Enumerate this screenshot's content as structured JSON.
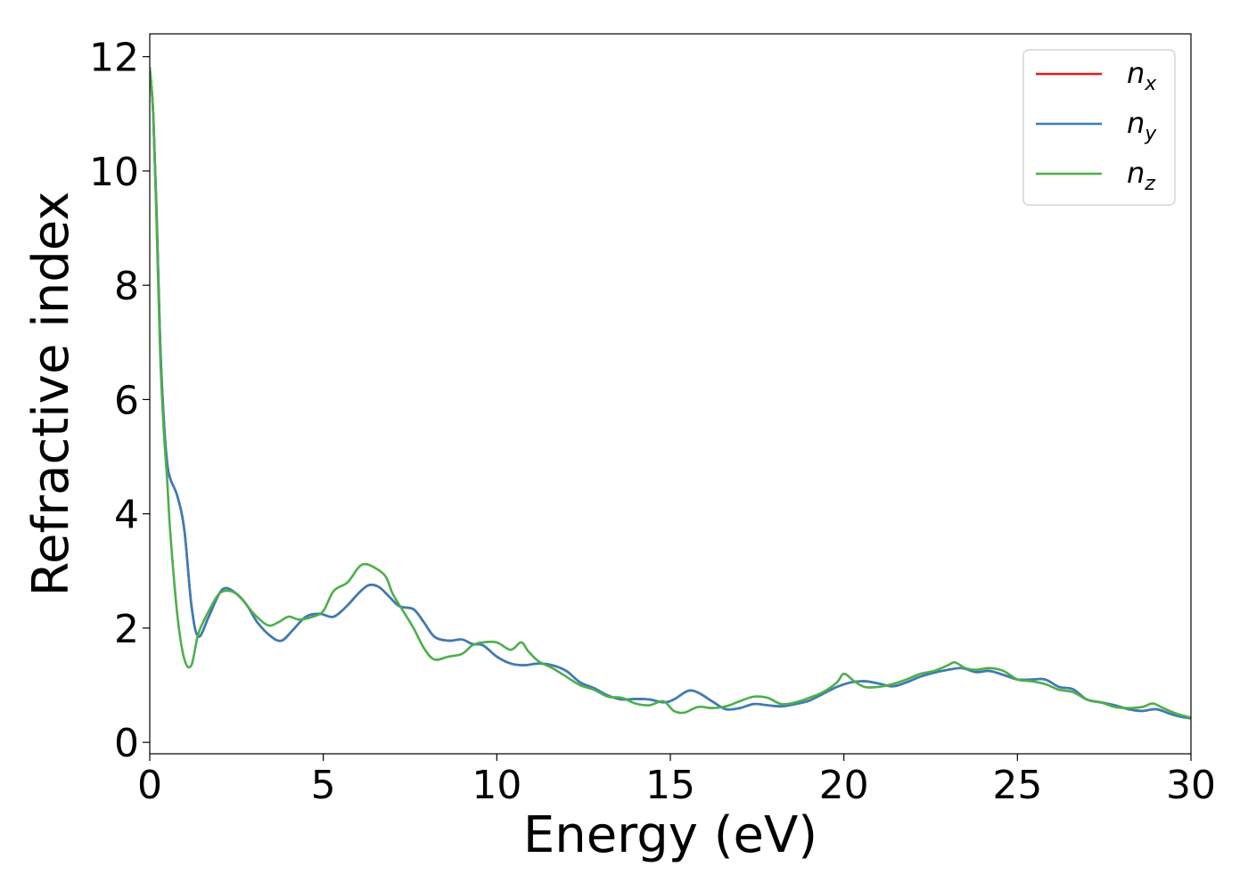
{
  "chart_data": {
    "type": "line",
    "xlabel": "Energy (eV)",
    "ylabel": "Refractive index",
    "xlim": [
      0,
      30
    ],
    "ylim": [
      -0.2,
      12.4
    ],
    "xticks": [
      0,
      5,
      10,
      15,
      20,
      25,
      30
    ],
    "yticks": [
      0,
      2,
      4,
      6,
      8,
      10,
      12
    ],
    "grid": false,
    "legend_position": "top-right",
    "series": [
      {
        "name": "n_x",
        "legend_main": "n",
        "legend_sub": "x",
        "color": "#e41a1c",
        "x": [
          0,
          0.1,
          0.2,
          0.3,
          0.4,
          0.5,
          0.6,
          0.8,
          1.0,
          1.2,
          1.4,
          1.7,
          2.0,
          2.2,
          2.5,
          2.8,
          3.1,
          3.5,
          3.8,
          4.1,
          4.5,
          4.9,
          5.3,
          5.7,
          6.0,
          6.3,
          6.6,
          6.9,
          7.2,
          7.6,
          7.9,
          8.2,
          8.6,
          9.0,
          9.3,
          9.6,
          10.0,
          10.4,
          10.8,
          11.2,
          11.6,
          12.0,
          12.4,
          12.8,
          13.2,
          13.6,
          14.0,
          14.4,
          14.8,
          15.1,
          15.5,
          15.8,
          16.2,
          16.6,
          17.0,
          17.4,
          17.8,
          18.2,
          18.6,
          19.0,
          19.4,
          19.8,
          20.2,
          20.6,
          21.0,
          21.4,
          21.8,
          22.2,
          22.6,
          23.0,
          23.4,
          23.8,
          24.2,
          24.6,
          25.0,
          25.4,
          25.8,
          26.2,
          26.6,
          27.0,
          27.4,
          27.8,
          28.2,
          28.6,
          29.0,
          29.4,
          29.7,
          30.0
        ],
        "y": [
          11.8,
          11.0,
          9.2,
          7.0,
          5.7,
          4.9,
          4.6,
          4.3,
          3.7,
          2.4,
          1.85,
          2.2,
          2.6,
          2.7,
          2.6,
          2.4,
          2.1,
          1.85,
          1.78,
          1.95,
          2.2,
          2.25,
          2.2,
          2.4,
          2.6,
          2.75,
          2.72,
          2.55,
          2.38,
          2.33,
          2.1,
          1.85,
          1.78,
          1.8,
          1.72,
          1.7,
          1.5,
          1.38,
          1.35,
          1.38,
          1.35,
          1.25,
          1.05,
          0.95,
          0.82,
          0.75,
          0.76,
          0.75,
          0.7,
          0.75,
          0.9,
          0.87,
          0.72,
          0.58,
          0.6,
          0.67,
          0.65,
          0.63,
          0.67,
          0.73,
          0.85,
          0.97,
          1.05,
          1.07,
          1.03,
          0.98,
          1.05,
          1.15,
          1.22,
          1.27,
          1.3,
          1.23,
          1.25,
          1.18,
          1.1,
          1.1,
          1.1,
          0.97,
          0.93,
          0.75,
          0.7,
          0.65,
          0.58,
          0.55,
          0.58,
          0.5,
          0.45,
          0.42
        ]
      },
      {
        "name": "n_y",
        "legend_main": "n",
        "legend_sub": "y",
        "color": "#377eb8",
        "x": [
          0,
          0.1,
          0.2,
          0.3,
          0.4,
          0.5,
          0.6,
          0.8,
          1.0,
          1.2,
          1.4,
          1.7,
          2.0,
          2.2,
          2.5,
          2.8,
          3.1,
          3.5,
          3.8,
          4.1,
          4.5,
          4.9,
          5.3,
          5.7,
          6.0,
          6.3,
          6.6,
          6.9,
          7.2,
          7.6,
          7.9,
          8.2,
          8.6,
          9.0,
          9.3,
          9.6,
          10.0,
          10.4,
          10.8,
          11.2,
          11.6,
          12.0,
          12.4,
          12.8,
          13.2,
          13.6,
          14.0,
          14.4,
          14.8,
          15.1,
          15.5,
          15.8,
          16.2,
          16.6,
          17.0,
          17.4,
          17.8,
          18.2,
          18.6,
          19.0,
          19.4,
          19.8,
          20.2,
          20.6,
          21.0,
          21.4,
          21.8,
          22.2,
          22.6,
          23.0,
          23.4,
          23.8,
          24.2,
          24.6,
          25.0,
          25.4,
          25.8,
          26.2,
          26.6,
          27.0,
          27.4,
          27.8,
          28.2,
          28.6,
          29.0,
          29.4,
          29.7,
          30.0
        ],
        "y": [
          11.8,
          11.0,
          9.2,
          7.0,
          5.7,
          4.9,
          4.6,
          4.3,
          3.7,
          2.4,
          1.85,
          2.2,
          2.6,
          2.7,
          2.6,
          2.4,
          2.1,
          1.85,
          1.78,
          1.95,
          2.2,
          2.25,
          2.2,
          2.4,
          2.6,
          2.75,
          2.72,
          2.55,
          2.38,
          2.33,
          2.1,
          1.85,
          1.78,
          1.8,
          1.72,
          1.7,
          1.5,
          1.38,
          1.35,
          1.38,
          1.35,
          1.25,
          1.05,
          0.95,
          0.82,
          0.75,
          0.76,
          0.75,
          0.7,
          0.75,
          0.9,
          0.87,
          0.72,
          0.58,
          0.6,
          0.67,
          0.65,
          0.63,
          0.67,
          0.73,
          0.85,
          0.97,
          1.05,
          1.07,
          1.03,
          0.98,
          1.05,
          1.15,
          1.22,
          1.27,
          1.3,
          1.23,
          1.25,
          1.18,
          1.1,
          1.1,
          1.1,
          0.97,
          0.93,
          0.75,
          0.7,
          0.65,
          0.58,
          0.55,
          0.58,
          0.5,
          0.45,
          0.42
        ]
      },
      {
        "name": "n_z",
        "legend_main": "n",
        "legend_sub": "z",
        "color": "#4daf4a",
        "x": [
          0,
          0.1,
          0.2,
          0.3,
          0.4,
          0.5,
          0.6,
          0.8,
          1.0,
          1.2,
          1.4,
          1.7,
          2.0,
          2.3,
          2.6,
          3.0,
          3.4,
          3.7,
          4.0,
          4.3,
          4.7,
          5.0,
          5.3,
          5.7,
          6.0,
          6.2,
          6.5,
          6.8,
          7.0,
          7.3,
          7.6,
          7.9,
          8.2,
          8.6,
          9.0,
          9.3,
          9.6,
          10.0,
          10.4,
          10.7,
          10.9,
          11.2,
          11.6,
          12.0,
          12.4,
          12.8,
          13.2,
          13.6,
          14.0,
          14.4,
          14.8,
          15.1,
          15.4,
          15.8,
          16.2,
          16.6,
          17.0,
          17.4,
          17.8,
          18.2,
          18.6,
          19.0,
          19.4,
          19.8,
          20.0,
          20.3,
          20.6,
          21.0,
          21.4,
          21.8,
          22.2,
          22.6,
          23.0,
          23.2,
          23.5,
          23.8,
          24.2,
          24.6,
          25.0,
          25.4,
          25.8,
          26.2,
          26.6,
          27.0,
          27.4,
          27.8,
          28.2,
          28.6,
          28.9,
          29.2,
          29.6,
          30.0
        ],
        "y": [
          11.8,
          11.0,
          9.0,
          6.8,
          5.5,
          4.6,
          3.6,
          2.2,
          1.45,
          1.35,
          1.9,
          2.3,
          2.6,
          2.65,
          2.55,
          2.25,
          2.05,
          2.1,
          2.2,
          2.15,
          2.2,
          2.3,
          2.65,
          2.8,
          3.05,
          3.12,
          3.05,
          2.9,
          2.6,
          2.3,
          2.0,
          1.65,
          1.45,
          1.5,
          1.55,
          1.7,
          1.75,
          1.75,
          1.62,
          1.75,
          1.6,
          1.42,
          1.3,
          1.15,
          1.0,
          0.92,
          0.8,
          0.78,
          0.68,
          0.65,
          0.72,
          0.55,
          0.52,
          0.62,
          0.6,
          0.63,
          0.72,
          0.8,
          0.78,
          0.67,
          0.7,
          0.78,
          0.88,
          1.05,
          1.2,
          1.07,
          0.97,
          0.97,
          1.02,
          1.1,
          1.2,
          1.25,
          1.35,
          1.4,
          1.3,
          1.27,
          1.3,
          1.25,
          1.1,
          1.07,
          1.02,
          0.92,
          0.88,
          0.75,
          0.7,
          0.62,
          0.6,
          0.62,
          0.68,
          0.6,
          0.5,
          0.43
        ]
      }
    ]
  }
}
